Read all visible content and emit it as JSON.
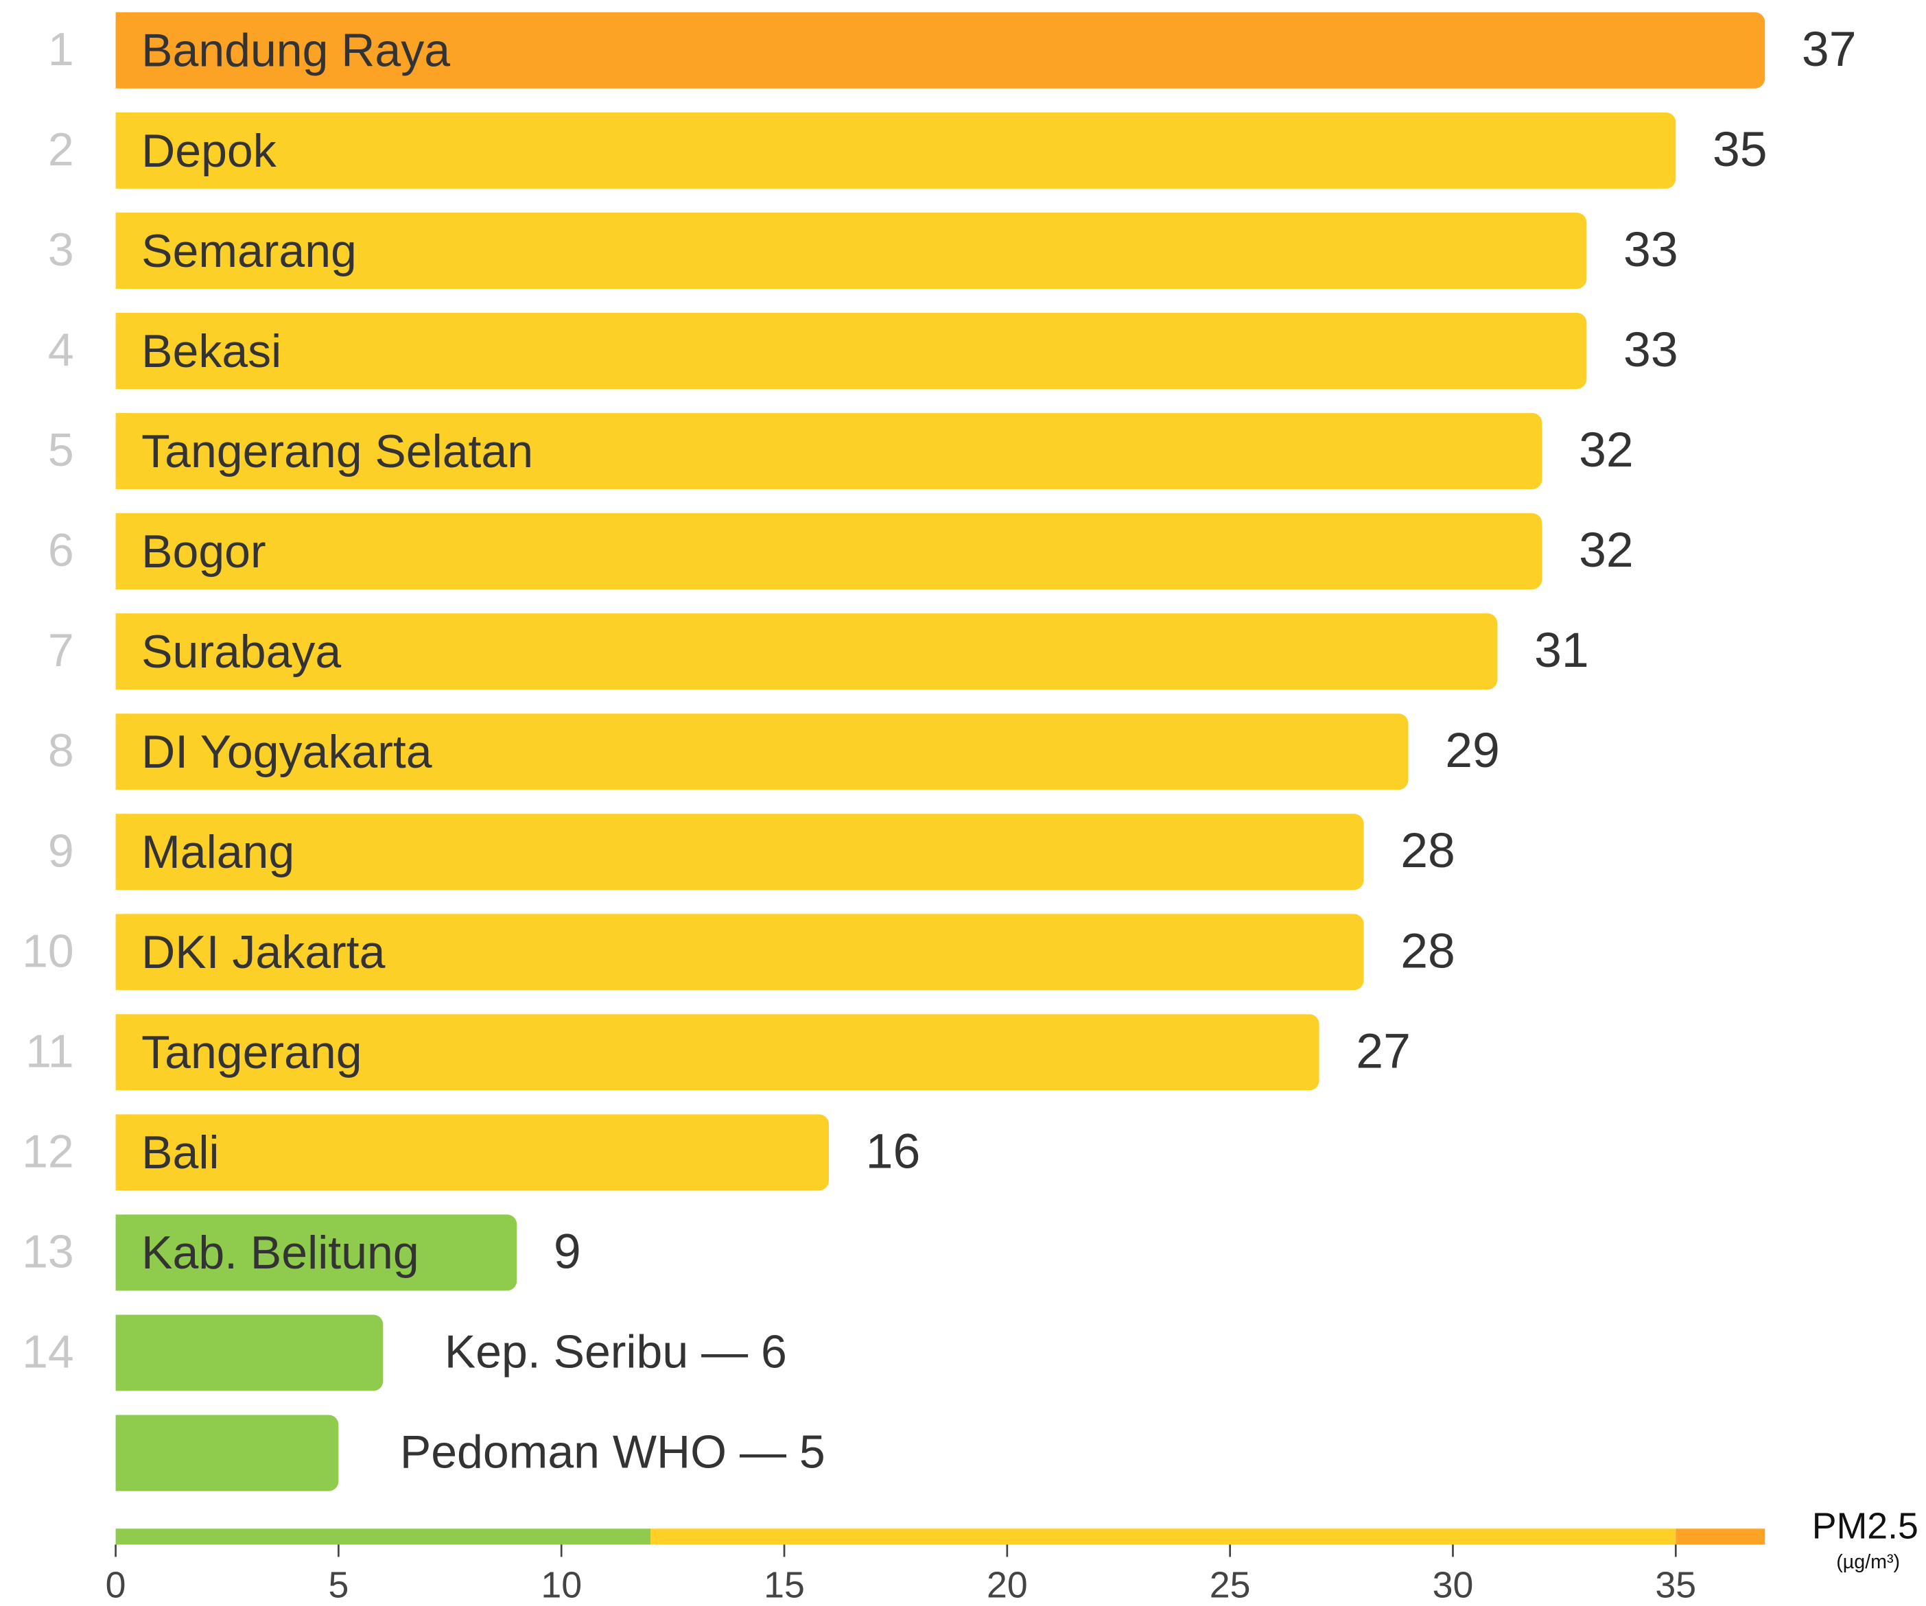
{
  "chart_data": {
    "type": "bar",
    "orientation": "horizontal",
    "categories": [
      "Bandung Raya",
      "Depok",
      "Semarang",
      "Bekasi",
      "Tangerang Selatan",
      "Bogor",
      "Surabaya",
      "DI Yogyakarta",
      "Malang",
      "DKI Jakarta",
      "Tangerang",
      "Bali",
      "Kab. Belitung",
      "Kep. Seribu",
      "Pedoman WHO"
    ],
    "ranks": [
      1,
      2,
      3,
      4,
      5,
      6,
      7,
      8,
      9,
      10,
      11,
      12,
      13,
      14,
      null
    ],
    "values": [
      37,
      35,
      33,
      33,
      32,
      32,
      31,
      29,
      28,
      28,
      27,
      16,
      9,
      6,
      5
    ],
    "colors": [
      "#fca326",
      "#fdd027",
      "#fdd027",
      "#fdd027",
      "#fdd027",
      "#fdd027",
      "#fdd027",
      "#fdd027",
      "#fdd027",
      "#fdd027",
      "#fdd027",
      "#fdd027",
      "#8fcb4c",
      "#8fcb4c",
      "#8fcb4c"
    ],
    "label_separator": "—",
    "xlim": [
      0,
      37
    ],
    "xticks": [
      0,
      5,
      10,
      15,
      20,
      25,
      30,
      35
    ],
    "scale_bands": [
      {
        "from": 0,
        "to": 12,
        "color": "#8fcb4c"
      },
      {
        "from": 12,
        "to": 35,
        "color": "#fdd027"
      },
      {
        "from": 35,
        "to": 37,
        "color": "#fca326"
      }
    ],
    "axis_label": "PM2.5",
    "axis_unit": "(µg/m³)"
  }
}
